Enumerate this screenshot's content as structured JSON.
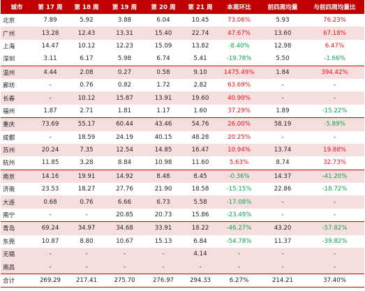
{
  "table": {
    "headers": [
      "城市",
      "第 17 周",
      "第 18 周",
      "第 19 周",
      "第 20 周",
      "第 21 周",
      "本周环比",
      "前四周均量",
      "与前四周均量比"
    ],
    "rows": [
      {
        "city": "北京",
        "w17": "7.89",
        "w18": "5.92",
        "w19": "3.88",
        "w20": "6.04",
        "w21": "10.45",
        "wow": "73.06%",
        "avg4": "5.93",
        "vs_avg": "76.23%",
        "wow_color": "pos",
        "vs_color": "pos"
      },
      {
        "city": "广州",
        "w17": "13.28",
        "w18": "12.43",
        "w19": "13.31",
        "w20": "15.40",
        "w21": "22.74",
        "wow": "47.67%",
        "avg4": "13.60",
        "vs_avg": "67.18%",
        "wow_color": "pos",
        "vs_color": "pos"
      },
      {
        "city": "上海",
        "w17": "14.47",
        "w18": "10.12",
        "w19": "12.23",
        "w20": "15.09",
        "w21": "13.82",
        "wow": "-8.40%",
        "avg4": "12.98",
        "vs_avg": "6.47%",
        "wow_color": "neg",
        "vs_color": "pos"
      },
      {
        "city": "深圳",
        "w17": "3.11",
        "w18": "6.17",
        "w19": "5.98",
        "w20": "6.74",
        "w21": "5.41",
        "wow": "-19.78%",
        "avg4": "5.50",
        "vs_avg": "-1.66%",
        "wow_color": "neg",
        "vs_color": "neg"
      },
      {
        "city": "温州",
        "w17": "4.44",
        "w18": "2.08",
        "w19": "0.27",
        "w20": "0.58",
        "w21": "9.10",
        "wow": "1475.49%",
        "avg4": "1.84",
        "vs_avg": "394.42%",
        "wow_color": "pos",
        "vs_color": "pos"
      },
      {
        "city": "廊坊",
        "w17": "-",
        "w18": "0.76",
        "w19": "0.82",
        "w20": "1.72",
        "w21": "2.82",
        "wow": "63.69%",
        "avg4": "-",
        "vs_avg": "-",
        "wow_color": "pos",
        "vs_color": "plain"
      },
      {
        "city": "长春",
        "w17": "-",
        "w18": "10.12",
        "w19": "15.87",
        "w20": "13.91",
        "w21": "19.60",
        "wow": "40.90%",
        "avg4": "-",
        "vs_avg": "-",
        "wow_color": "pos",
        "vs_color": "plain"
      },
      {
        "city": "福州",
        "w17": "1.87",
        "w18": "2.71",
        "w19": "1.81",
        "w20": "1.17",
        "w21": "1.60",
        "wow": "37.29%",
        "avg4": "1.89",
        "vs_avg": "-15.22%",
        "wow_color": "pos",
        "vs_color": "neg"
      },
      {
        "city": "重庆",
        "w17": "73.69",
        "w18": "55.17",
        "w19": "60.44",
        "w20": "43.46",
        "w21": "54.76",
        "wow": "26.00%",
        "avg4": "58.19",
        "vs_avg": "-5.89%",
        "wow_color": "pos",
        "vs_color": "neg"
      },
      {
        "city": "成都",
        "w17": "-",
        "w18": "18.59",
        "w19": "24.19",
        "w20": "40.15",
        "w21": "48.28",
        "wow": "20.25%",
        "avg4": "-",
        "vs_avg": "-",
        "wow_color": "pos",
        "vs_color": "plain"
      },
      {
        "city": "苏州",
        "w17": "20.24",
        "w18": "7.35",
        "w19": "12.54",
        "w20": "14.85",
        "w21": "16.47",
        "wow": "10.94%",
        "avg4": "13.74",
        "vs_avg": "19.88%",
        "wow_color": "pos",
        "vs_color": "pos"
      },
      {
        "city": "杭州",
        "w17": "11.85",
        "w18": "3.28",
        "w19": "8.84",
        "w20": "10.98",
        "w21": "11.60",
        "wow": "5.63%",
        "avg4": "8.74",
        "vs_avg": "32.73%",
        "wow_color": "pos",
        "vs_color": "pos"
      },
      {
        "city": "南京",
        "w17": "14.16",
        "w18": "19.91",
        "w19": "14.92",
        "w20": "8.48",
        "w21": "8.45",
        "wow": "-0.36%",
        "avg4": "14.37",
        "vs_avg": "-41.20%",
        "wow_color": "neg",
        "vs_color": "neg"
      },
      {
        "city": "济南",
        "w17": "23.53",
        "w18": "18.27",
        "w19": "27.76",
        "w20": "21.90",
        "w21": "18.58",
        "wow": "-15.15%",
        "avg4": "22.86",
        "vs_avg": "-18.72%",
        "wow_color": "neg",
        "vs_color": "neg"
      },
      {
        "city": "大连",
        "w17": "0.68",
        "w18": "0.76",
        "w19": "6.66",
        "w20": "6.73",
        "w21": "5.58",
        "wow": "-17.08%",
        "avg4": "-",
        "vs_avg": "-",
        "wow_color": "neg",
        "vs_color": "plain"
      },
      {
        "city": "南宁",
        "w17": "-",
        "w18": "-",
        "w19": "20.85",
        "w20": "20.73",
        "w21": "15.86",
        "wow": "-23.49%",
        "avg4": "-",
        "vs_avg": "-",
        "wow_color": "neg",
        "vs_color": "plain"
      },
      {
        "city": "青岛",
        "w17": "69.24",
        "w18": "34.97",
        "w19": "34.68",
        "w20": "33.91",
        "w21": "18.22",
        "wow": "-46.27%",
        "avg4": "43.20",
        "vs_avg": "-57.82%",
        "wow_color": "neg",
        "vs_color": "neg"
      },
      {
        "city": "东莞",
        "w17": "10.87",
        "w18": "8.80",
        "w19": "10.67",
        "w20": "15.13",
        "w21": "6.84",
        "wow": "-54.78%",
        "avg4": "11.37",
        "vs_avg": "-39.82%",
        "wow_color": "neg",
        "vs_color": "neg"
      },
      {
        "city": "无锡",
        "w17": "-",
        "w18": "-",
        "w19": "-",
        "w20": "-",
        "w21": "4.14",
        "wow": "-",
        "avg4": "-",
        "vs_avg": "-",
        "wow_color": "plain",
        "vs_color": "plain"
      },
      {
        "city": "南昌",
        "w17": "-",
        "w18": "-",
        "w19": "-",
        "w20": "-",
        "w21": "-",
        "wow": "-",
        "avg4": "-",
        "vs_avg": "-",
        "wow_color": "plain",
        "vs_color": "plain"
      }
    ],
    "total": {
      "city": "合计",
      "w17": "269.29",
      "w18": "217.41",
      "w19": "275.70",
      "w20": "276.97",
      "w21": "294.33",
      "wow": "6.27%",
      "avg4": "214.21",
      "vs_avg": "37.40%"
    },
    "colors": {
      "header_bg": "#c00000",
      "header_text": "#ffffff",
      "band_pink": "#f7dede",
      "positive": "#e8111c",
      "negative": "#0aa34a"
    }
  }
}
